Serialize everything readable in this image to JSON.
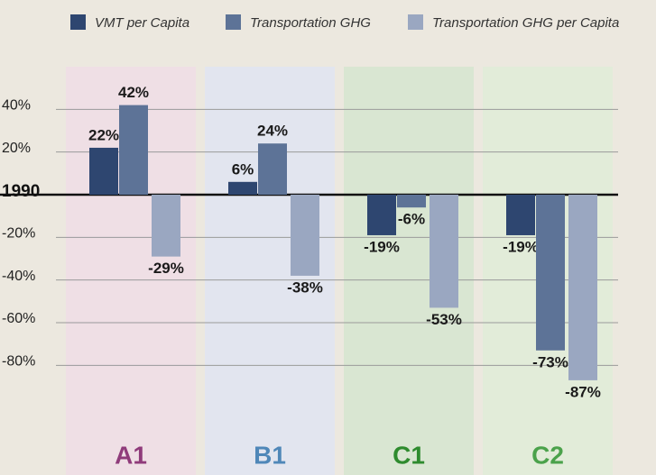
{
  "chart_data": {
    "type": "bar",
    "categories": [
      "A1",
      "B1",
      "C1",
      "C2"
    ],
    "band_colors": [
      "#efdfe5",
      "#e2e5ef",
      "#d9e6d2",
      "#e2ecd9"
    ],
    "label_colors": [
      "#8f3b7a",
      "#4f87b8",
      "#2e8b2e",
      "#4ba24b"
    ],
    "series": [
      {
        "name": "VMT per Capita",
        "color": "#2e4670",
        "values": [
          22,
          6,
          -19,
          -19
        ],
        "value_labels": [
          "22%",
          "6%",
          "-19%",
          "-19%"
        ]
      },
      {
        "name": "Transportation GHG",
        "color": "#5d7397",
        "values": [
          42,
          24,
          -6,
          -73
        ],
        "value_labels": [
          "42%",
          "24%",
          "-6%",
          "-73%"
        ]
      },
      {
        "name": "Transportation GHG per Capita",
        "color": "#9aa7c1",
        "values": [
          -29,
          -38,
          -53,
          -87
        ],
        "value_labels": [
          "-29%",
          "-38%",
          "-53%",
          "-87%"
        ]
      }
    ],
    "ylim": [
      -120,
      60
    ],
    "yticks": [
      {
        "value": 40,
        "label": "40%"
      },
      {
        "value": 20,
        "label": "20%"
      },
      {
        "value": 0,
        "label": "1990"
      },
      {
        "value": -20,
        "label": "-20%"
      },
      {
        "value": -40,
        "label": "-40%"
      },
      {
        "value": -60,
        "label": "-60%"
      },
      {
        "value": -80,
        "label": "-80%"
      }
    ],
    "grid": true
  }
}
